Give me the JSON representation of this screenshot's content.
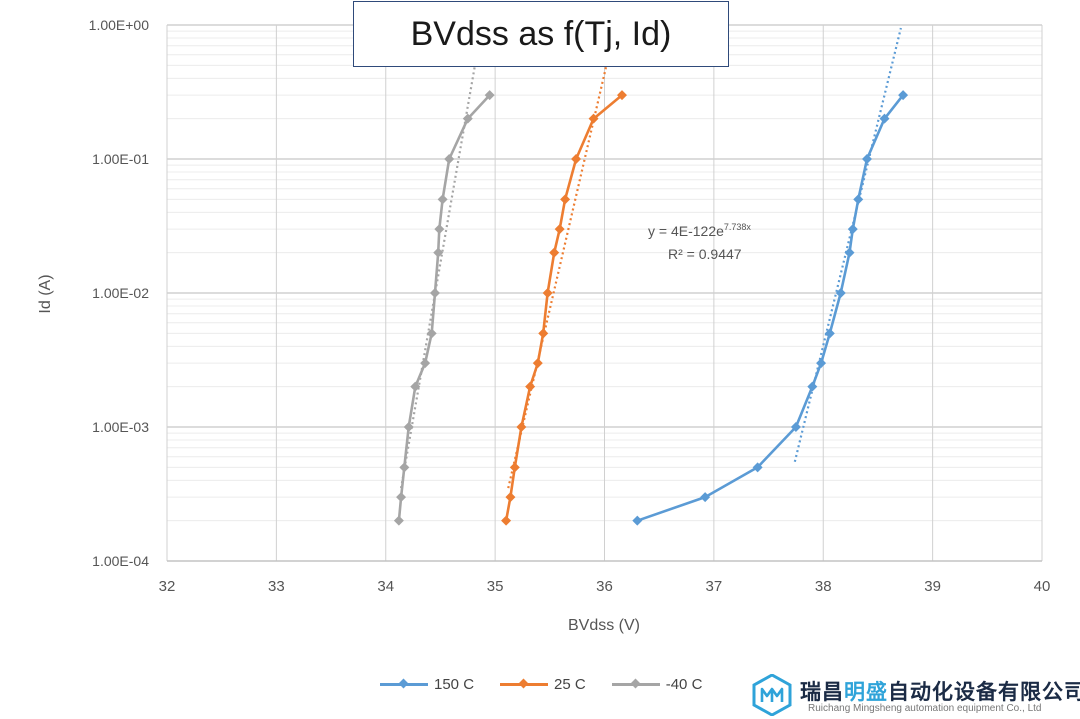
{
  "chart_data": {
    "type": "scatter",
    "title": "BVdss as f(Tj, Id)",
    "xlabel": "BVdss (V)",
    "ylabel": "Id (A)",
    "xlim": [
      32,
      40
    ],
    "ylim": [
      0.0001,
      1
    ],
    "yscale": "log",
    "x_ticks": [
      "32",
      "33",
      "34",
      "35",
      "36",
      "37",
      "38",
      "39",
      "40"
    ],
    "y_ticks": [
      "1.00E-04",
      "1.00E-03",
      "1.00E-02",
      "1.00E-01",
      "1.00E+00"
    ],
    "grid": true,
    "legend_position": "bottom",
    "annotation": {
      "equation_prefix": "y = 4E-122e",
      "equation_exponent": "7.738x",
      "r_squared": "R² = 0.9447"
    },
    "series": [
      {
        "name": "150 C",
        "color": "#5b9bd5",
        "points": [
          [
            36.3,
            0.0002
          ],
          [
            36.92,
            0.0003
          ],
          [
            37.4,
            0.0005
          ],
          [
            37.75,
            0.001
          ],
          [
            37.9,
            0.002
          ],
          [
            37.98,
            0.003
          ],
          [
            38.06,
            0.005
          ],
          [
            38.16,
            0.01
          ],
          [
            38.24,
            0.02
          ],
          [
            38.27,
            0.03
          ],
          [
            38.32,
            0.05
          ],
          [
            38.4,
            0.1
          ],
          [
            38.56,
            0.2
          ],
          [
            38.73,
            0.3
          ]
        ],
        "trendline": [
          [
            37.74,
            0.00055
          ],
          [
            38.71,
            0.95
          ]
        ]
      },
      {
        "name": "25 C",
        "color": "#ed7d31",
        "points": [
          [
            35.1,
            0.0002
          ],
          [
            35.14,
            0.0003
          ],
          [
            35.18,
            0.0005
          ],
          [
            35.24,
            0.001
          ],
          [
            35.32,
            0.002
          ],
          [
            35.39,
            0.003
          ],
          [
            35.44,
            0.005
          ],
          [
            35.48,
            0.01
          ],
          [
            35.54,
            0.02
          ],
          [
            35.59,
            0.03
          ],
          [
            35.64,
            0.05
          ],
          [
            35.74,
            0.1
          ],
          [
            35.9,
            0.2
          ],
          [
            36.16,
            0.3
          ]
        ],
        "trendline": [
          [
            35.12,
            0.00035
          ],
          [
            36.05,
            0.65
          ]
        ]
      },
      {
        "name": "-40 C",
        "color": "#a5a5a5",
        "points": [
          [
            34.12,
            0.0002
          ],
          [
            34.14,
            0.0003
          ],
          [
            34.17,
            0.0005
          ],
          [
            34.21,
            0.001
          ],
          [
            34.27,
            0.002
          ],
          [
            34.36,
            0.003
          ],
          [
            34.42,
            0.005
          ],
          [
            34.45,
            0.01
          ],
          [
            34.48,
            0.02
          ],
          [
            34.49,
            0.03
          ],
          [
            34.52,
            0.05
          ],
          [
            34.58,
            0.1
          ],
          [
            34.75,
            0.2
          ],
          [
            34.95,
            0.3
          ]
        ],
        "trendline": [
          [
            34.14,
            0.00035
          ],
          [
            34.84,
            0.65
          ]
        ]
      }
    ]
  },
  "watermark": {
    "name_part1": "瑞昌",
    "name_highlight": "明盛",
    "name_part2": "自动化设备有限公司",
    "subtitle": "Ruichang Mingsheng automation equipment Co., Ltd"
  }
}
